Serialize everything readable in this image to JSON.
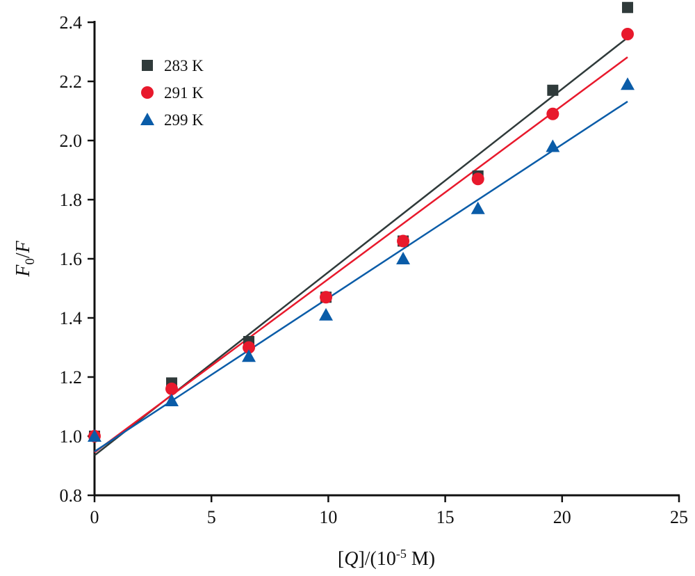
{
  "chart_data": {
    "type": "scatter",
    "xlabel": "[Q]/(10-5 M)",
    "ylabel": "F0/F",
    "xlim": [
      0,
      25
    ],
    "ylim": [
      0.8,
      2.4
    ],
    "xticks": [
      "0",
      "5",
      "10",
      "15",
      "20",
      "25"
    ],
    "yticks": [
      "0.8",
      "1.0",
      "1.2",
      "1.4",
      "1.6",
      "1.8",
      "2.0",
      "2.2",
      "2.4"
    ],
    "grid": false,
    "legend_position": "top-left",
    "x": [
      0,
      3.3,
      6.6,
      9.9,
      13.2,
      16.4,
      19.6,
      22.8
    ],
    "series": [
      {
        "name": "283 K",
        "marker": "square",
        "color": "#2f3a3a",
        "values": [
          1.0,
          1.18,
          1.32,
          1.47,
          1.66,
          1.88,
          2.17,
          2.45
        ],
        "fit": {
          "x": [
            0,
            22.8
          ],
          "y": [
            0.935,
            2.348
          ]
        }
      },
      {
        "name": "291 K",
        "marker": "circle",
        "color": "#e8192c",
        "values": [
          1.0,
          1.16,
          1.3,
          1.47,
          1.66,
          1.87,
          2.09,
          2.36
        ],
        "fit": {
          "x": [
            0,
            22.8
          ],
          "y": [
            0.945,
            2.282
          ]
        }
      },
      {
        "name": "299 K",
        "marker": "triangle",
        "color": "#0a5ca8",
        "values": [
          1.0,
          1.12,
          1.27,
          1.41,
          1.6,
          1.77,
          1.98,
          2.19
        ],
        "fit": {
          "x": [
            0,
            22.8
          ],
          "y": [
            0.948,
            2.132
          ]
        }
      }
    ]
  }
}
